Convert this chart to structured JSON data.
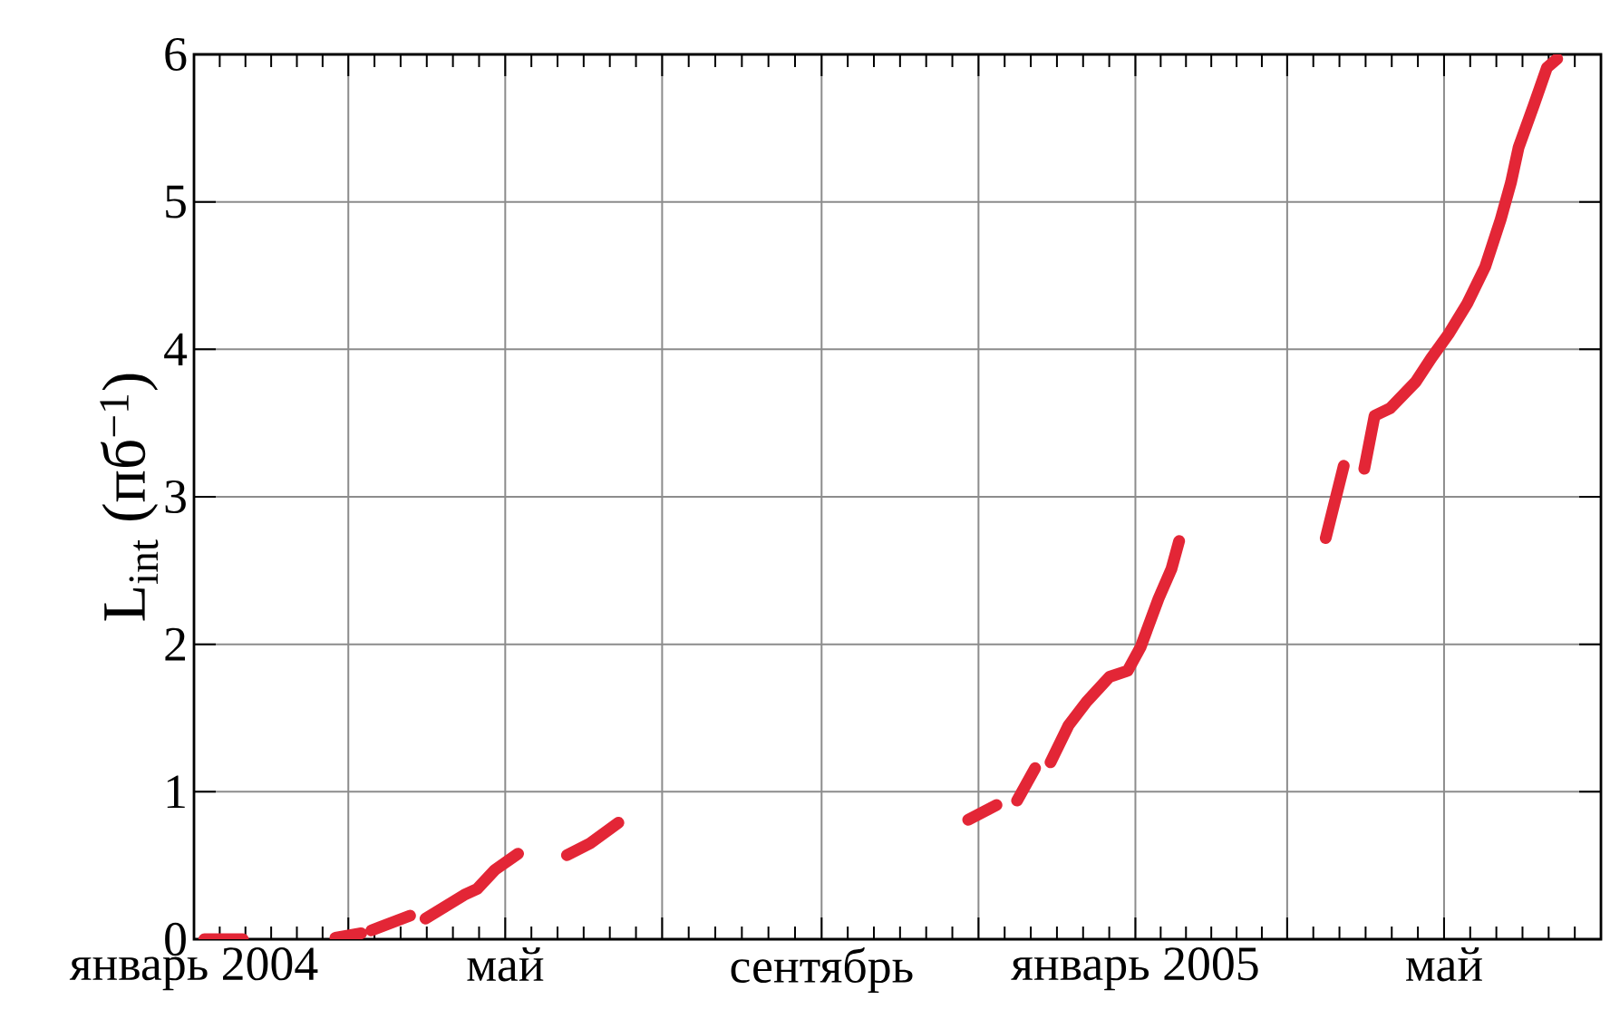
{
  "chart_data": {
    "type": "line",
    "ylabel": "L$_{int}$ (пб$^{−1}$)",
    "x": [
      "2004-01-05",
      "2004-01-20",
      "2004-02-08",
      "2004-02-25",
      "2004-03-06",
      "2004-03-08",
      "2004-03-10",
      "2004-03-25",
      "2004-03-28",
      "2004-03-31",
      "2004-04-15",
      "2004-04-20",
      "2004-04-27",
      "2004-05-06",
      "2004-05-15",
      "2004-05-25",
      "2004-06-03",
      "2004-06-14",
      "2004-09-01",
      "2004-10-28",
      "2004-11-08",
      "2004-11-12",
      "2004-11-16",
      "2004-11-23",
      "2004-11-26",
      "2004-11-29",
      "2004-12-06",
      "2004-12-13",
      "2004-12-22",
      "2004-12-29",
      "2005-01-03",
      "2005-01-10",
      "2005-01-15",
      "2005-01-18",
      "2005-02-15",
      "2005-03-16",
      "2005-03-23",
      "2005-03-27",
      "2005-03-31",
      "2005-04-04",
      "2005-04-10",
      "2005-04-20",
      "2005-04-26",
      "2005-05-03",
      "2005-05-10",
      "2005-05-17",
      "2005-05-23",
      "2005-05-27",
      "2005-05-30",
      "2005-06-05",
      "2005-06-10",
      "2005-06-14"
    ],
    "series": [
      {
        "color": "#e32636",
        "values": [
          0,
          0,
          null,
          0.01,
          0.04,
          null,
          0.06,
          0.16,
          null,
          0.14,
          0.3,
          0.34,
          0.47,
          0.58,
          null,
          0.57,
          0.65,
          0.79,
          null,
          0.81,
          0.91,
          null,
          0.94,
          1.16,
          null,
          1.2,
          1.45,
          1.61,
          1.78,
          1.82,
          1.98,
          2.31,
          2.51,
          2.7,
          null,
          2.72,
          3.21,
          null,
          3.19,
          3.55,
          3.6,
          3.78,
          3.94,
          4.11,
          4.31,
          4.56,
          4.88,
          5.13,
          5.37,
          5.66,
          5.91,
          5.97
        ]
      }
    ],
    "xlim": [
      "2004-01-01",
      "2005-07-01"
    ],
    "xticks": [
      {
        "value": "2004-01-01",
        "label": "январь 2004"
      },
      {
        "value": "2004-03-01",
        "label": null
      },
      {
        "value": "2004-05-01",
        "label": "май"
      },
      {
        "value": "2004-07-01",
        "label": null
      },
      {
        "value": "2004-09-01",
        "label": "сентябрь"
      },
      {
        "value": "2004-11-01",
        "label": null
      },
      {
        "value": "2005-01-01",
        "label": "январь 2005"
      },
      {
        "value": "2005-03-01",
        "label": null
      },
      {
        "value": "2005-05-01",
        "label": "май"
      },
      {
        "value": "2005-07-01",
        "label": null
      }
    ],
    "ylim": [
      0,
      6
    ],
    "yticks": [
      0,
      1,
      2,
      3,
      4,
      5,
      6
    ],
    "grid": true
  }
}
